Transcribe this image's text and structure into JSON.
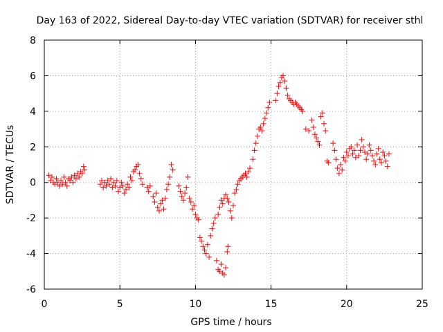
{
  "chart_data": {
    "type": "scatter",
    "title": "Day 163 of 2022, Sidereal Day-to-day VTEC variation (SDTVAR) for receiver sthl",
    "xlabel": "GPS time / hours",
    "ylabel": "SDTVAR / TECUs",
    "xlim": [
      0,
      25
    ],
    "ylim": [
      -6,
      8
    ],
    "xticks": [
      0,
      5,
      10,
      15,
      20,
      25
    ],
    "yticks": [
      -6,
      -4,
      -2,
      0,
      2,
      4,
      6,
      8
    ],
    "grid": true,
    "marker": "+",
    "color": "#ff0000",
    "series": [
      {
        "name": "sthl",
        "points": [
          [
            0.3,
            0.4
          ],
          [
            0.4,
            0.1
          ],
          [
            0.5,
            0.3
          ],
          [
            0.6,
            0.0
          ],
          [
            0.7,
            -0.1
          ],
          [
            0.8,
            0.2
          ],
          [
            0.9,
            0.0
          ],
          [
            1.0,
            -0.2
          ],
          [
            1.1,
            0.1
          ],
          [
            1.2,
            -0.1
          ],
          [
            1.3,
            0.3
          ],
          [
            1.4,
            0.0
          ],
          [
            1.5,
            -0.2
          ],
          [
            1.6,
            0.2
          ],
          [
            1.7,
            0.1
          ],
          [
            1.8,
            0.3
          ],
          [
            1.9,
            0.0
          ],
          [
            2.0,
            0.4
          ],
          [
            2.1,
            0.2
          ],
          [
            2.2,
            0.5
          ],
          [
            2.3,
            0.3
          ],
          [
            2.4,
            0.6
          ],
          [
            2.5,
            0.5
          ],
          [
            2.6,
            0.9
          ],
          [
            2.65,
            0.7
          ],
          [
            3.7,
            -0.1
          ],
          [
            3.8,
            0.1
          ],
          [
            3.9,
            -0.3
          ],
          [
            4.0,
            0.0
          ],
          [
            4.1,
            -0.2
          ],
          [
            4.2,
            0.1
          ],
          [
            4.3,
            -0.1
          ],
          [
            4.4,
            0.2
          ],
          [
            4.5,
            -0.3
          ],
          [
            4.6,
            0.0
          ],
          [
            4.7,
            -0.2
          ],
          [
            4.8,
            0.1
          ],
          [
            4.9,
            -0.5
          ],
          [
            5.0,
            -0.3
          ],
          [
            5.1,
            0.0
          ],
          [
            5.2,
            -0.2
          ],
          [
            5.3,
            -0.6
          ],
          [
            5.4,
            -0.4
          ],
          [
            5.5,
            -0.1
          ],
          [
            5.6,
            -0.3
          ],
          [
            5.7,
            0.3
          ],
          [
            5.8,
            0.1
          ],
          [
            5.9,
            0.6
          ],
          [
            6.0,
            0.7
          ],
          [
            6.1,
            0.9
          ],
          [
            6.2,
            1.0
          ],
          [
            6.3,
            0.5
          ],
          [
            6.4,
            0.2
          ],
          [
            6.5,
            -0.1
          ],
          [
            6.8,
            -0.3
          ],
          [
            6.9,
            -0.5
          ],
          [
            7.0,
            -0.2
          ],
          [
            7.2,
            -0.8
          ],
          [
            7.3,
            -1.1
          ],
          [
            7.4,
            -0.6
          ],
          [
            7.5,
            -1.4
          ],
          [
            7.6,
            -1.6
          ],
          [
            7.7,
            -1.2
          ],
          [
            7.8,
            -1.0
          ],
          [
            7.9,
            -1.5
          ],
          [
            8.0,
            -0.9
          ],
          [
            8.1,
            -0.4
          ],
          [
            8.2,
            -0.1
          ],
          [
            8.3,
            0.3
          ],
          [
            8.4,
            1.0
          ],
          [
            8.5,
            0.7
          ],
          [
            8.9,
            -0.2
          ],
          [
            9.0,
            -0.5
          ],
          [
            9.1,
            -0.8
          ],
          [
            9.2,
            -1.0
          ],
          [
            9.3,
            -0.6
          ],
          [
            9.4,
            -0.3
          ],
          [
            9.5,
            0.3
          ],
          [
            9.6,
            -0.9
          ],
          [
            9.7,
            -1.1
          ],
          [
            9.8,
            -1.5
          ],
          [
            9.9,
            -1.3
          ],
          [
            10.0,
            -1.8
          ],
          [
            10.1,
            -2.0
          ],
          [
            10.2,
            -2.1
          ],
          [
            10.3,
            -3.1
          ],
          [
            10.4,
            -3.3
          ],
          [
            10.5,
            -3.6
          ],
          [
            10.6,
            -3.8
          ],
          [
            10.7,
            -4.0
          ],
          [
            10.8,
            -3.5
          ],
          [
            10.9,
            -4.2
          ],
          [
            11.0,
            -3.0
          ],
          [
            11.1,
            -2.6
          ],
          [
            11.2,
            -2.3
          ],
          [
            11.3,
            -2.0
          ],
          [
            11.4,
            -4.4
          ],
          [
            11.5,
            -4.9
          ],
          [
            11.6,
            -5.0
          ],
          [
            11.7,
            -4.6
          ],
          [
            11.8,
            -5.1
          ],
          [
            11.9,
            -5.2
          ],
          [
            12.0,
            -4.8
          ],
          [
            12.1,
            -3.9
          ],
          [
            12.15,
            -3.6
          ],
          [
            11.5,
            -1.8
          ],
          [
            11.6,
            -1.4
          ],
          [
            11.7,
            -1.0
          ],
          [
            11.8,
            -1.2
          ],
          [
            11.9,
            -0.9
          ],
          [
            12.0,
            -0.7
          ],
          [
            12.1,
            -0.9
          ],
          [
            12.2,
            -1.1
          ],
          [
            12.3,
            -1.6
          ],
          [
            12.4,
            -2.0
          ],
          [
            12.5,
            -1.3
          ],
          [
            12.6,
            -0.6
          ],
          [
            12.7,
            -0.4
          ],
          [
            12.8,
            -0.1
          ],
          [
            12.9,
            0.1
          ],
          [
            13.0,
            0.2
          ],
          [
            13.1,
            0.3
          ],
          [
            13.2,
            0.4
          ],
          [
            13.3,
            0.5
          ],
          [
            13.4,
            0.3
          ],
          [
            13.5,
            0.6
          ],
          [
            13.6,
            0.8
          ],
          [
            13.8,
            1.3
          ],
          [
            13.9,
            1.8
          ],
          [
            14.0,
            2.2
          ],
          [
            14.1,
            2.6
          ],
          [
            14.2,
            3.0
          ],
          [
            14.3,
            3.1
          ],
          [
            14.4,
            2.9
          ],
          [
            14.5,
            3.3
          ],
          [
            14.6,
            3.6
          ],
          [
            14.7,
            3.9
          ],
          [
            14.8,
            4.2
          ],
          [
            14.9,
            4.5
          ],
          [
            15.3,
            4.6
          ],
          [
            15.4,
            5.0
          ],
          [
            15.5,
            5.4
          ],
          [
            15.6,
            5.6
          ],
          [
            15.7,
            5.9
          ],
          [
            15.8,
            6.0
          ],
          [
            15.9,
            5.7
          ],
          [
            16.0,
            5.3
          ],
          [
            16.1,
            4.9
          ],
          [
            16.2,
            4.7
          ],
          [
            16.3,
            4.6
          ],
          [
            16.4,
            4.5
          ],
          [
            16.5,
            4.4
          ],
          [
            16.6,
            4.5
          ],
          [
            16.7,
            4.4
          ],
          [
            16.8,
            4.3
          ],
          [
            16.9,
            4.2
          ],
          [
            17.0,
            4.1
          ],
          [
            17.1,
            4.0
          ],
          [
            17.3,
            3.0
          ],
          [
            17.5,
            2.9
          ],
          [
            17.7,
            3.5
          ],
          [
            17.8,
            3.1
          ],
          [
            17.9,
            2.7
          ],
          [
            18.0,
            2.5
          ],
          [
            18.1,
            2.3
          ],
          [
            18.2,
            2.1
          ],
          [
            18.3,
            3.7
          ],
          [
            18.4,
            3.9
          ],
          [
            18.5,
            3.3
          ],
          [
            18.6,
            2.9
          ],
          [
            18.7,
            1.2
          ],
          [
            18.8,
            1.1
          ],
          [
            19.1,
            2.2
          ],
          [
            19.2,
            1.8
          ],
          [
            19.3,
            1.3
          ],
          [
            19.4,
            0.8
          ],
          [
            19.5,
            0.5
          ],
          [
            19.6,
            1.0
          ],
          [
            19.7,
            0.7
          ],
          [
            19.8,
            1.4
          ],
          [
            19.9,
            1.2
          ],
          [
            20.0,
            1.7
          ],
          [
            20.1,
            1.5
          ],
          [
            20.2,
            1.9
          ],
          [
            20.3,
            2.0
          ],
          [
            20.4,
            1.6
          ],
          [
            20.5,
            1.8
          ],
          [
            20.6,
            1.4
          ],
          [
            20.7,
            2.1
          ],
          [
            20.8,
            1.5
          ],
          [
            20.9,
            1.8
          ],
          [
            21.0,
            2.4
          ],
          [
            21.1,
            2.0
          ],
          [
            21.2,
            1.7
          ],
          [
            21.3,
            1.3
          ],
          [
            21.4,
            1.6
          ],
          [
            21.5,
            2.1
          ],
          [
            21.6,
            1.8
          ],
          [
            21.7,
            1.5
          ],
          [
            21.8,
            1.2
          ],
          [
            21.9,
            1.0
          ],
          [
            22.0,
            1.6
          ],
          [
            22.1,
            1.9
          ],
          [
            22.2,
            1.3
          ],
          [
            22.3,
            1.1
          ],
          [
            22.4,
            1.7
          ],
          [
            22.5,
            1.5
          ],
          [
            22.6,
            1.2
          ],
          [
            22.7,
            0.9
          ],
          [
            22.8,
            1.6
          ]
        ]
      }
    ]
  }
}
